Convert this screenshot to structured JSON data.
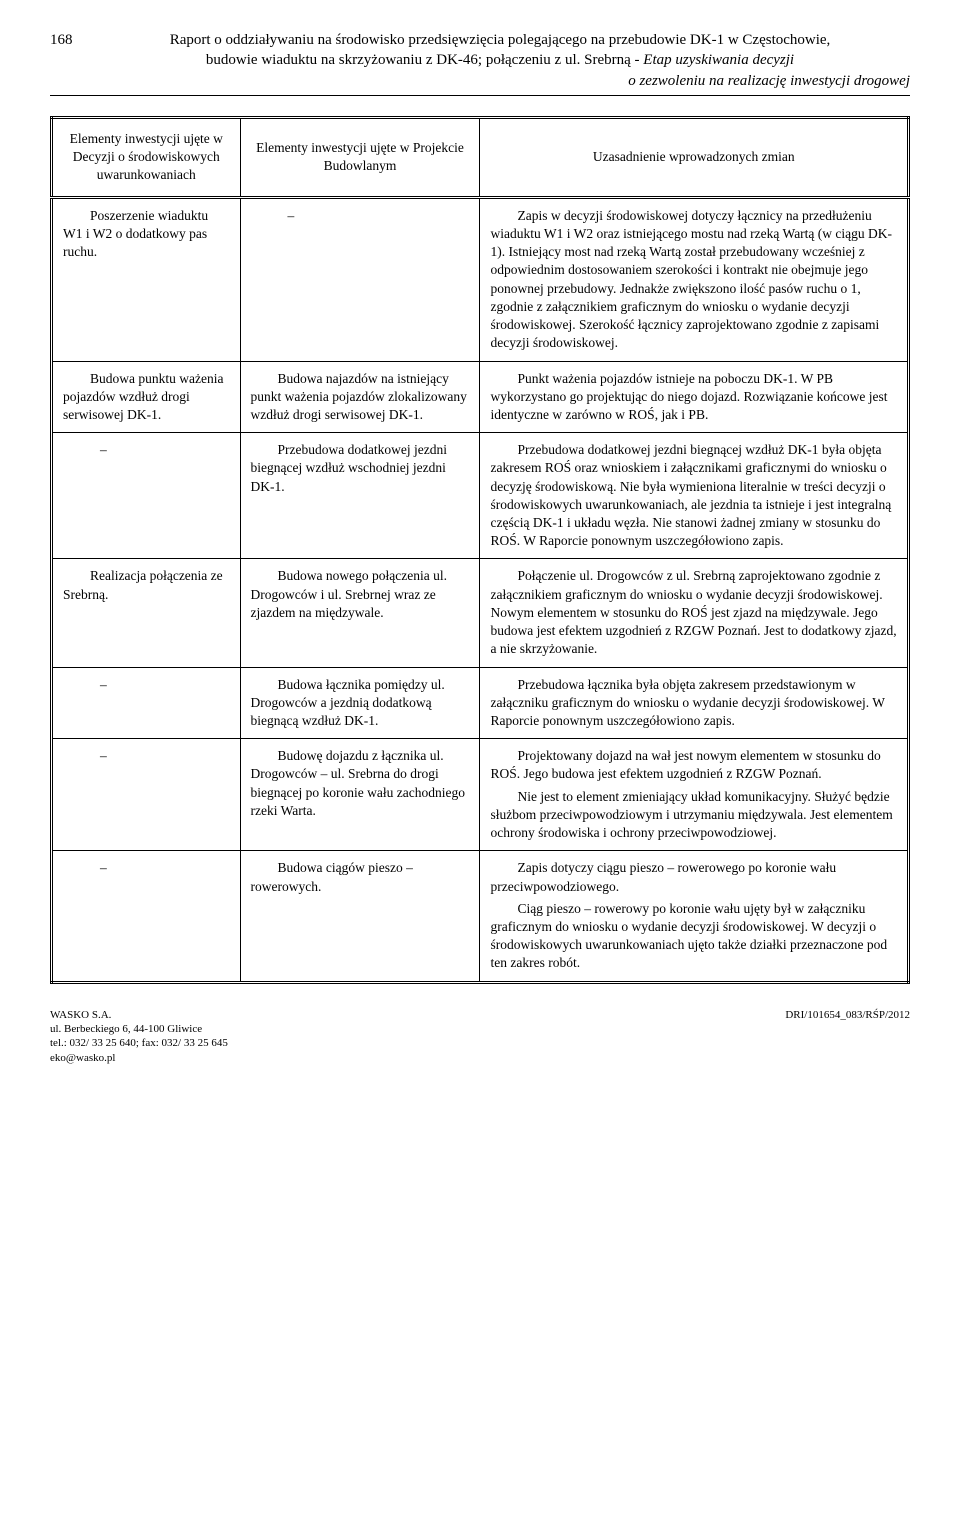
{
  "header": {
    "page_number": "168",
    "line1": "Raport o oddziaływaniu na środowisko przedsięwzięcia polegającego na przebudowie DK-1 w Częstochowie,",
    "line2": "budowie wiaduktu na skrzyżowaniu z DK-46; połączeniu z ul. Srebrną - ",
    "line2_italic": "Etap uzyskiwania decyzji",
    "line3_italic": "o zezwoleniu na realizację inwestycji drogowej"
  },
  "table": {
    "headers": {
      "col1": "Elementy inwestycji ujęte w Decyzji o środowiskowych uwarunkowaniach",
      "col2": "Elementy inwestycji ujęte w Projekcie Budowlanym",
      "col3": "Uzasadnienie wprowadzonych zmian"
    },
    "rows": [
      {
        "c1": "Poszerzenie wiaduktu W1 i W2 o dodatkowy pas ruchu.",
        "c2": "–",
        "c3": "Zapis w decyzji środowiskowej dotyczy łącznicy na przedłużeniu wiaduktu W1 i W2 oraz istniejącego mostu nad rzeką Wartą (w ciągu DK-1). Istniejący most nad rzeką Wartą został przebudowany wcześniej z odpowiednim dostosowaniem szerokości i kontrakt nie obejmuje jego ponownej przebudowy. Jednakże zwiększono ilość pasów ruchu o 1, zgodnie z załącznikiem graficznym do wniosku o wydanie decyzji środowiskowej. Szerokość łącznicy zaprojektowano zgodnie z zapisami decyzji środowiskowej."
      },
      {
        "c1": "Budowa punktu ważenia pojazdów wzdłuż drogi serwisowej DK-1.",
        "c2": "Budowa najazdów na istniejący punkt ważenia pojazdów zlokalizowany wzdłuż drogi serwisowej DK-1.",
        "c3": "Punkt ważenia pojazdów istnieje na poboczu DK-1. W PB wykorzystano go projektując do niego dojazd. Rozwiązanie końcowe jest identyczne w zarówno w ROŚ, jak i PB."
      },
      {
        "c1": "–",
        "c2": "Przebudowa dodatkowej jezdni biegnącej wzdłuż wschodniej jezdni DK-1.",
        "c3": "Przebudowa dodatkowej jezdni biegnącej wzdłuż DK-1 była objęta zakresem ROŚ oraz wnioskiem i załącznikami graficznymi do wniosku o decyzję środowiskową. Nie była wymieniona literalnie w treści decyzji o środowiskowych uwarunkowaniach, ale jezdnia ta istnieje i jest integralną częścią DK-1 i układu węzła. Nie stanowi żadnej zmiany w stosunku do ROŚ. W Raporcie ponownym uszczegółowiono zapis."
      },
      {
        "c1": "Realizacja połączenia ze Srebrną.",
        "c2": "Budowa nowego połączenia ul. Drogowców i ul. Srebrnej wraz ze zjazdem na międzywale.",
        "c3": "Połączenie ul. Drogowców z ul. Srebrną zaprojektowano zgodnie z załącznikiem graficznym do wniosku o wydanie decyzji środowiskowej. Nowym elementem w stosunku do ROŚ jest zjazd na międzywale. Jego budowa jest efektem uzgodnień z RZGW Poznań. Jest to dodatkowy zjazd, a nie skrzyżowanie."
      },
      {
        "c1": "–",
        "c2": "Budowa łącznika pomiędzy ul. Drogowców a jezdnią dodatkową biegnącą wzdłuż DK-1.",
        "c3": "Przebudowa łącznika była objęta zakresem przedstawionym w załączniku graficznym do wniosku o wydanie decyzji środowiskowej. W Raporcie ponownym uszczegółowiono zapis."
      },
      {
        "c1": "–",
        "c2": "Budowę dojazdu z łącznika ul. Drogowców – ul. Srebrna do drogi biegnącej po koronie wału zachodniego rzeki Warta.",
        "c3_parts": [
          "Projektowany dojazd na wał jest nowym elementem w stosunku do ROŚ. Jego budowa jest efektem uzgodnień z RZGW Poznań.",
          "Nie jest to element zmieniający układ komunikacyjny. Służyć będzie służbom przeciwpowodziowym i utrzymaniu międzywala. Jest elementem ochrony środowiska i ochrony przeciwpowodziowej."
        ]
      },
      {
        "c1": "–",
        "c2": "Budowa ciągów pieszo – rowerowych.",
        "c3_parts": [
          "Zapis dotyczy ciągu pieszo – rowerowego po koronie wału przeciwpowodziowego.",
          "Ciąg pieszo – rowerowy po koronie wału ujęty był w załączniku graficznym do wniosku o wydanie decyzji środowiskowej. W decyzji o środowiskowych uwarunkowaniach ujęto także działki przeznaczone pod ten zakres robót."
        ]
      }
    ]
  },
  "footer": {
    "company": "WASKO S.A.",
    "address": "ul. Berbeckiego 6, 44-100 Gliwice",
    "phone": "tel.: 032/ 33 25 640; fax: 032/ 33 25 645",
    "email": "eko@wasko.pl",
    "right": "DRI/101654_083/RŚP/2012"
  }
}
